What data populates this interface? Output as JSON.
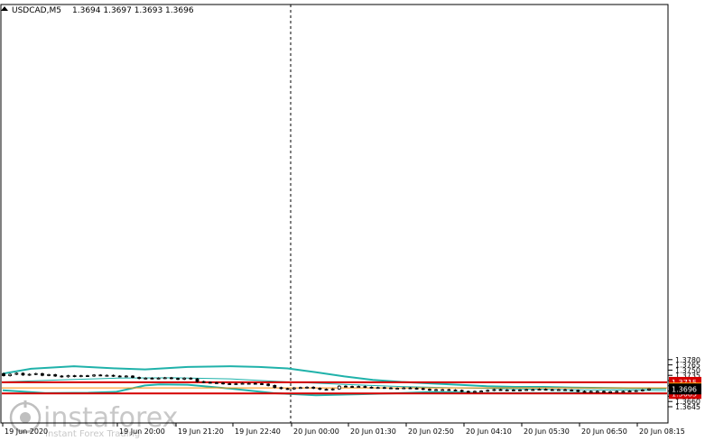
{
  "header": {
    "symbol": "USDCAD,M5",
    "ohlc": "1.3694 1.3697 1.3693 1.3696"
  },
  "watermark": {
    "brand": "instaforex",
    "tagline": "Instant Forex Trading"
  },
  "colors": {
    "bollinger": "#20b2aa",
    "level_line": "#d40000",
    "current_line": "#ff8c00",
    "candle": "#000000"
  },
  "chart_data": {
    "type": "candlestick",
    "title": "USDCAD,M5",
    "ylim": [
      1.364,
      1.379
    ],
    "y_ticks": [
      "1.3780",
      "1.3765",
      "1.3750",
      "1.3735",
      "1.3720",
      "1.3705",
      "1.3690",
      "1.3675",
      "1.3660",
      "1.3645"
    ],
    "x_ticks": [
      "19 Jun 2020",
      "19 Jun 20:00",
      "19 Jun 21:20",
      "19 Jun 22:40",
      "20 Jun 00:00",
      "20 Jun 01:30",
      "20 Jun 02:50",
      "20 Jun 04:10",
      "20 Jun 05:30",
      "20 Jun 06:50",
      "20 Jun 08:15"
    ],
    "horizontal_levels": [
      {
        "label": "1.3715",
        "value": 1.3715,
        "color": "#d40000"
      },
      {
        "label": "1.3683",
        "value": 1.3683,
        "color": "#d40000"
      },
      {
        "label": "1.3699",
        "value": 1.3699,
        "color": "#ff8c00"
      }
    ],
    "current_price": {
      "label": "1.3696",
      "value": 1.3696
    },
    "session_separator_label": "20 Jun 00:00",
    "closes": [
      1.3734,
      1.3738,
      1.3741,
      1.3736,
      1.3738,
      1.374,
      1.3735,
      1.3737,
      1.3733,
      1.3731,
      1.3734,
      1.3732,
      1.3734,
      1.3733,
      1.3736,
      1.3735,
      1.3735,
      1.3733,
      1.3732,
      1.3733,
      1.3729,
      1.3726,
      1.3727,
      1.3726,
      1.3727,
      1.3728,
      1.3726,
      1.3724,
      1.3727,
      1.3725,
      1.3717,
      1.3715,
      1.3714,
      1.3713,
      1.3711,
      1.371,
      1.3711,
      1.3712,
      1.3712,
      1.3711,
      1.371,
      1.3706,
      1.37,
      1.3697,
      1.3696,
      1.3699,
      1.37,
      1.3701,
      1.3698,
      1.3695,
      1.3694,
      1.3696,
      1.3704,
      1.3703,
      1.3702,
      1.3703,
      1.3701,
      1.37,
      1.37,
      1.3699,
      1.3698,
      1.3698,
      1.3699,
      1.3698,
      1.3697,
      1.3695,
      1.3693,
      1.3694,
      1.3694,
      1.3693,
      1.3692,
      1.3689,
      1.3688,
      1.3689,
      1.369,
      1.3692,
      1.3694,
      1.3693,
      1.3693,
      1.3692,
      1.3693,
      1.3694,
      1.3694,
      1.3695,
      1.3694,
      1.3693,
      1.3694,
      1.3693,
      1.3692,
      1.3689,
      1.3688,
      1.3689,
      1.3689,
      1.3688,
      1.3688,
      1.3689,
      1.3689,
      1.369,
      1.3691,
      1.3693,
      1.3696
    ],
    "upper_band": [
      [
        0,
        1.374
      ],
      [
        10,
        1.3754
      ],
      [
        25,
        1.3761
      ],
      [
        40,
        1.3755
      ],
      [
        50,
        1.3752
      ],
      [
        65,
        1.3759
      ],
      [
        80,
        1.3761
      ],
      [
        90,
        1.3759
      ],
      [
        100,
        1.3755
      ],
      [
        110,
        1.3744
      ],
      [
        120,
        1.3732
      ],
      [
        130,
        1.3722
      ],
      [
        140,
        1.3716
      ],
      [
        150,
        1.3712
      ],
      [
        160,
        1.3708
      ],
      [
        170,
        1.3704
      ],
      [
        180,
        1.3702
      ],
      [
        190,
        1.3702
      ],
      [
        200,
        1.37
      ],
      [
        210,
        1.3699
      ],
      [
        220,
        1.3698
      ],
      [
        230,
        1.3697
      ],
      [
        233,
        1.3697
      ]
    ],
    "middle_band": [
      [
        0,
        1.3716
      ],
      [
        20,
        1.3722
      ],
      [
        40,
        1.3727
      ],
      [
        60,
        1.3728
      ],
      [
        80,
        1.3725
      ],
      [
        100,
        1.3716
      ],
      [
        120,
        1.3709
      ],
      [
        140,
        1.3703
      ],
      [
        160,
        1.3699
      ],
      [
        180,
        1.3696
      ],
      [
        200,
        1.3694
      ],
      [
        220,
        1.3692
      ],
      [
        233,
        1.3691
      ]
    ],
    "lower_band": [
      [
        0,
        1.3692
      ],
      [
        15,
        1.3684
      ],
      [
        30,
        1.3685
      ],
      [
        40,
        1.3688
      ],
      [
        50,
        1.3706
      ],
      [
        55,
        1.3709
      ],
      [
        65,
        1.3708
      ],
      [
        80,
        1.3697
      ],
      [
        95,
        1.3684
      ],
      [
        110,
        1.3678
      ],
      [
        125,
        1.3681
      ],
      [
        140,
        1.3684
      ],
      [
        150,
        1.3687
      ],
      [
        160,
        1.3686
      ],
      [
        170,
        1.3684
      ],
      [
        180,
        1.3684
      ],
      [
        190,
        1.3684
      ],
      [
        200,
        1.3685
      ],
      [
        210,
        1.3684
      ],
      [
        220,
        1.3683
      ],
      [
        233,
        1.3683
      ]
    ]
  }
}
